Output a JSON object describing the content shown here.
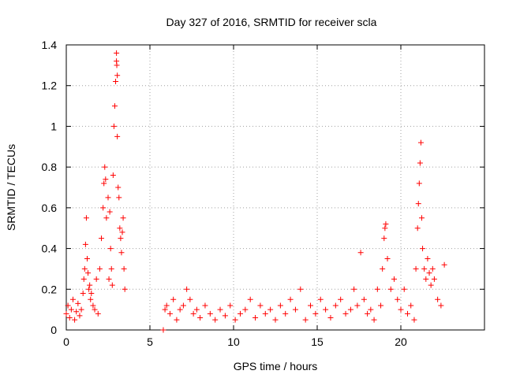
{
  "chart_data": {
    "type": "scatter",
    "title": "Day 327 of 2016, SRMTID for receiver scla",
    "xlabel": "GPS time / hours",
    "ylabel": "SRMTID / TECUs",
    "xlim": [
      0,
      25
    ],
    "ylim": [
      0,
      1.4
    ],
    "xticks": [
      0,
      5,
      10,
      15,
      20
    ],
    "xtick_labels": [
      "0",
      "5",
      "10",
      "15",
      "20"
    ],
    "yticks": [
      0,
      0.2,
      0.4,
      0.6,
      0.8,
      1,
      1.2,
      1.4
    ],
    "ytick_labels": [
      "0",
      "0.2",
      "0.4",
      "0.6",
      "0.8",
      "1",
      "1.2",
      "1.4"
    ],
    "grid": true,
    "marker": "+",
    "series": [
      {
        "name": "SRMTID",
        "color": "#ff0000",
        "x": [
          0.0,
          0.1,
          0.2,
          0.3,
          0.4,
          0.5,
          0.6,
          0.7,
          0.8,
          0.9,
          1.0,
          1.05,
          1.1,
          1.15,
          1.2,
          1.25,
          1.3,
          1.35,
          1.4,
          1.45,
          1.5,
          1.6,
          1.7,
          1.8,
          1.9,
          2.0,
          2.1,
          2.2,
          2.25,
          2.3,
          2.35,
          2.4,
          2.5,
          2.55,
          2.6,
          2.65,
          2.7,
          2.75,
          2.8,
          2.85,
          2.9,
          2.95,
          3.0,
          3.0,
          3.02,
          3.05,
          3.05,
          3.1,
          3.15,
          3.2,
          3.25,
          3.3,
          3.35,
          3.4,
          3.45,
          3.5,
          5.8,
          5.9,
          6.0,
          6.2,
          6.4,
          6.6,
          6.8,
          7.0,
          7.2,
          7.4,
          7.6,
          7.8,
          8.0,
          8.3,
          8.6,
          8.9,
          9.2,
          9.5,
          9.8,
          10.1,
          10.4,
          10.7,
          11.0,
          11.3,
          11.6,
          11.9,
          12.2,
          12.5,
          12.8,
          13.1,
          13.4,
          13.7,
          14.0,
          14.3,
          14.6,
          14.9,
          15.2,
          15.5,
          15.8,
          16.1,
          16.4,
          16.7,
          17.0,
          17.2,
          17.4,
          17.6,
          17.8,
          18.0,
          18.2,
          18.4,
          18.6,
          18.8,
          18.9,
          19.0,
          19.05,
          19.1,
          19.2,
          19.4,
          19.6,
          19.8,
          20.0,
          20.2,
          20.4,
          20.6,
          20.8,
          20.9,
          21.0,
          21.05,
          21.1,
          21.15,
          21.2,
          21.25,
          21.3,
          21.4,
          21.5,
          21.6,
          21.7,
          21.8,
          21.9,
          22.0,
          22.2,
          22.4,
          22.6
        ],
        "y": [
          0.08,
          0.12,
          0.06,
          0.1,
          0.15,
          0.05,
          0.09,
          0.13,
          0.07,
          0.1,
          0.18,
          0.25,
          0.3,
          0.42,
          0.55,
          0.35,
          0.28,
          0.2,
          0.22,
          0.15,
          0.18,
          0.12,
          0.1,
          0.25,
          0.08,
          0.3,
          0.45,
          0.6,
          0.72,
          0.8,
          0.74,
          0.55,
          0.65,
          0.25,
          0.58,
          0.4,
          0.3,
          0.22,
          0.76,
          1.0,
          1.1,
          1.22,
          1.36,
          1.32,
          1.3,
          1.25,
          0.95,
          0.7,
          0.65,
          0.5,
          0.45,
          0.38,
          0.48,
          0.55,
          0.3,
          0.2,
          0.0,
          0.1,
          0.12,
          0.08,
          0.15,
          0.05,
          0.1,
          0.12,
          0.2,
          0.15,
          0.08,
          0.1,
          0.06,
          0.12,
          0.08,
          0.05,
          0.1,
          0.07,
          0.12,
          0.05,
          0.08,
          0.1,
          0.15,
          0.06,
          0.12,
          0.08,
          0.1,
          0.05,
          0.12,
          0.08,
          0.15,
          0.1,
          0.2,
          0.05,
          0.12,
          0.08,
          0.15,
          0.1,
          0.06,
          0.12,
          0.15,
          0.08,
          0.1,
          0.2,
          0.12,
          0.38,
          0.15,
          0.08,
          0.1,
          0.05,
          0.2,
          0.12,
          0.3,
          0.45,
          0.5,
          0.52,
          0.35,
          0.2,
          0.25,
          0.15,
          0.1,
          0.2,
          0.08,
          0.12,
          0.05,
          0.3,
          0.5,
          0.62,
          0.72,
          0.82,
          0.92,
          0.55,
          0.4,
          0.3,
          0.25,
          0.35,
          0.28,
          0.22,
          0.3,
          0.25,
          0.15,
          0.12,
          0.32
        ]
      }
    ]
  }
}
